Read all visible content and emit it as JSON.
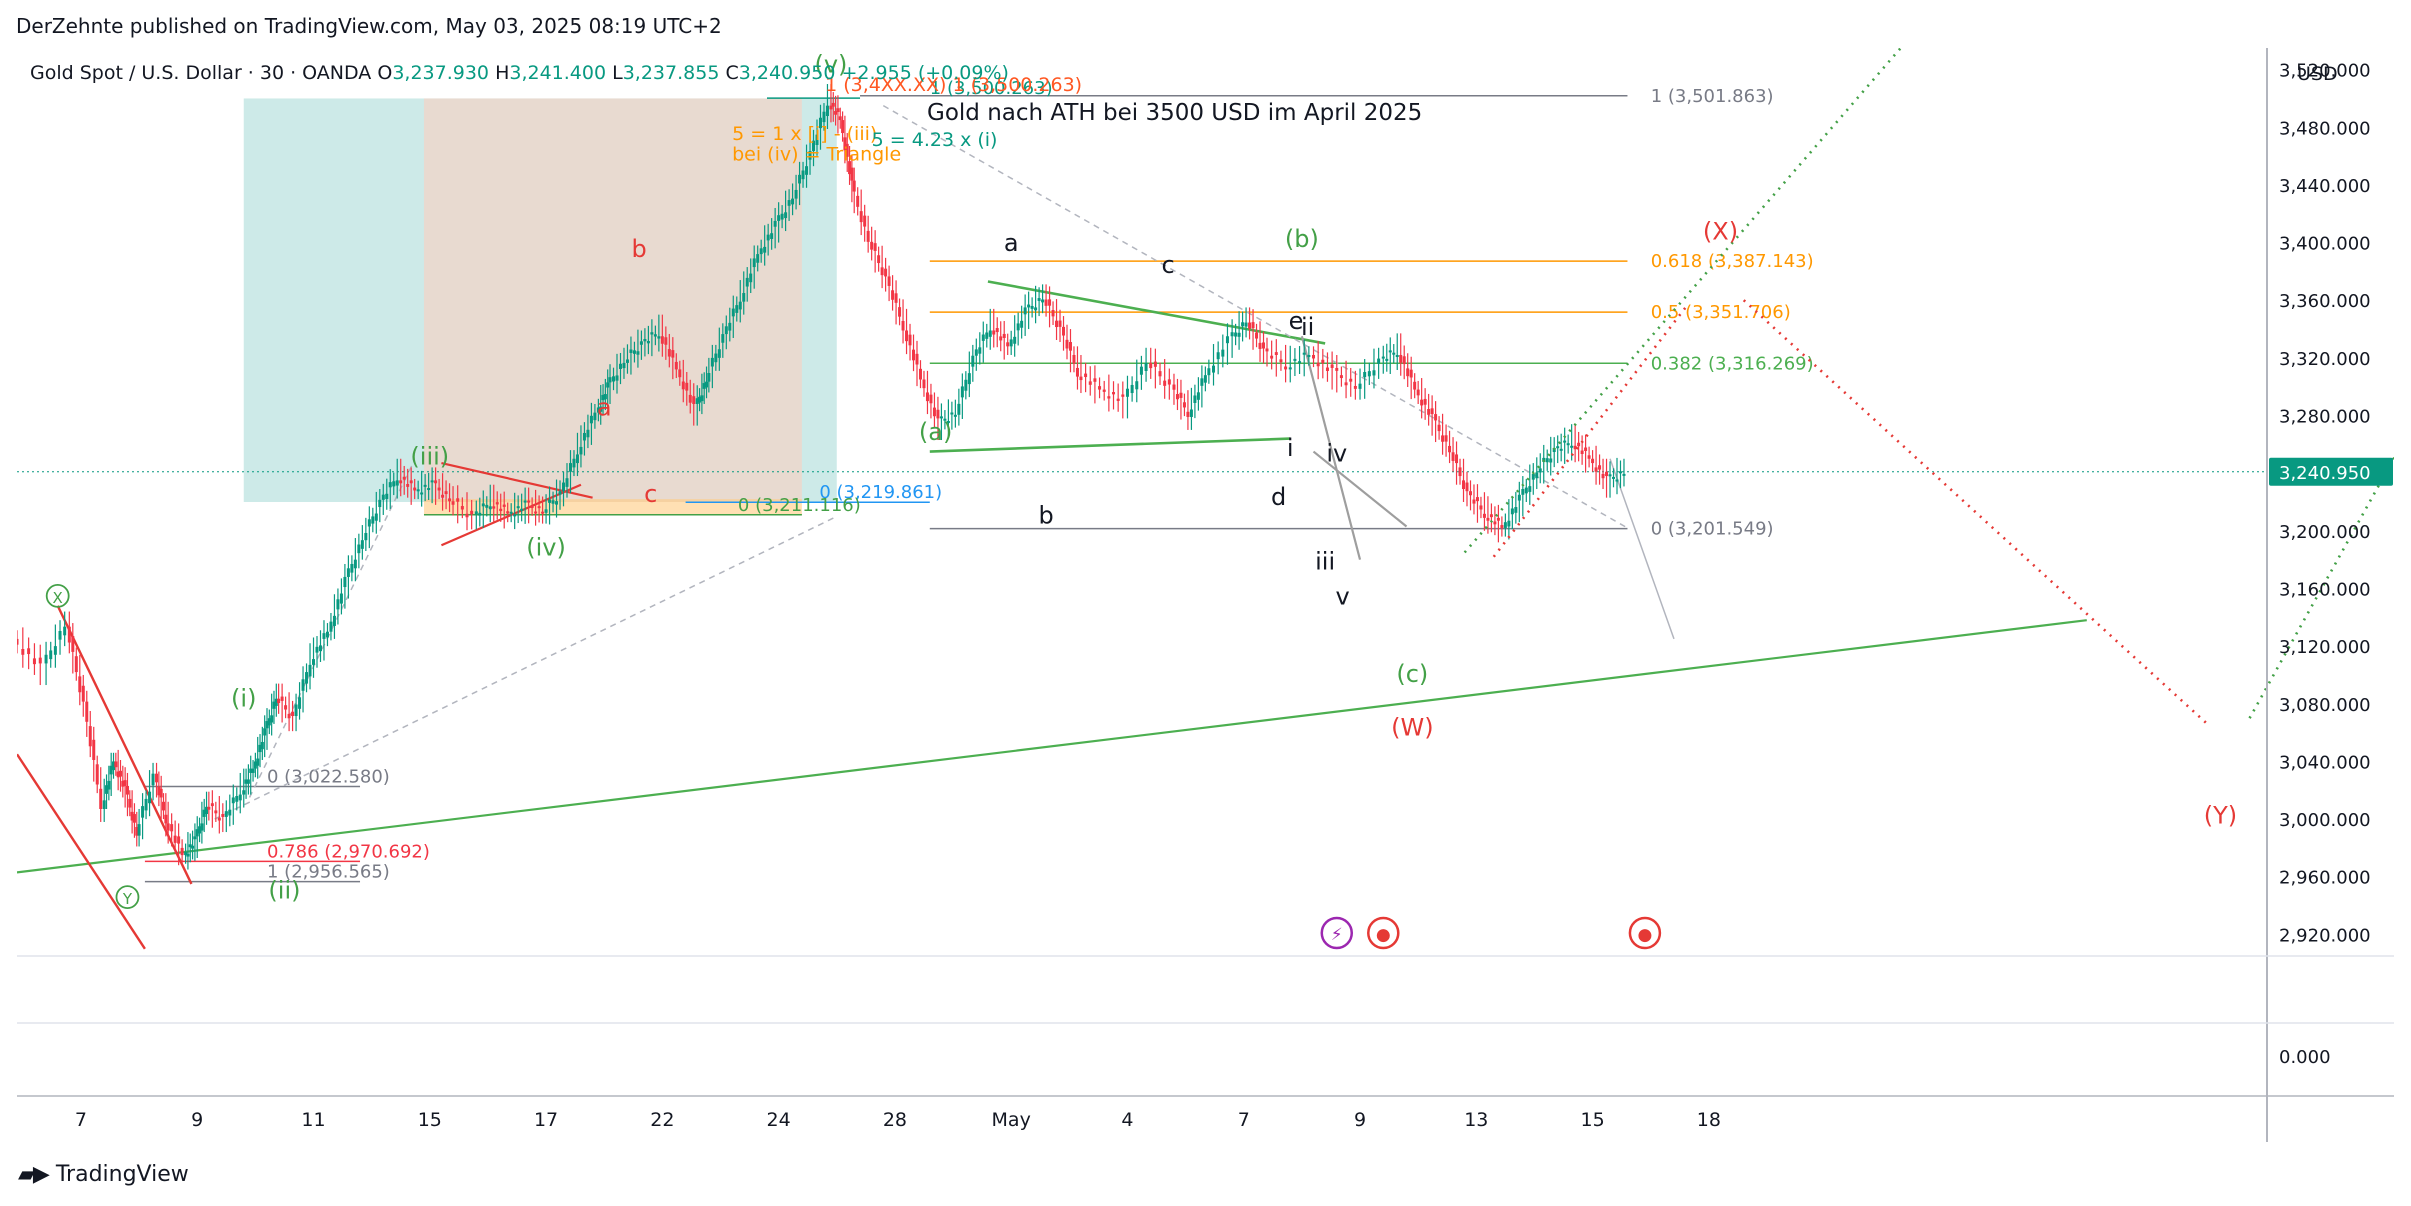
{
  "header": {
    "published": "DerZehnte published on TradingView.com, May 03, 2025 08:19 UTC+2"
  },
  "footer": {
    "brand": "TradingView"
  },
  "symbol": {
    "name": "Gold Spot / U.S. Dollar · 30 · OANDA",
    "o_label": "O",
    "o": "3,237.930",
    "h_label": "H",
    "h": "3,241.400",
    "l_label": "L",
    "l": "3,237.855",
    "c_label": "C",
    "c": "3,240.950",
    "change": "+2.955 (+0.09%)"
  },
  "colors": {
    "up": "#089981",
    "down": "#f23645",
    "fib_orange": "#ff9800",
    "wave_green": "#43a047",
    "wave_red": "#e53935",
    "grid": "#e0e3eb",
    "text": "#131722"
  },
  "chart_data": {
    "type": "line",
    "title": "Gold nach ATH bei 3500 USD im April 2025",
    "currency": "USD",
    "last_price": "3,240.950",
    "y_ticks": [
      "3,520.000",
      "3,480.000",
      "3,440.000",
      "3,400.000",
      "3,360.000",
      "3,320.000",
      "3,280.000",
      "3,240.000",
      "3,200.000",
      "3,160.000",
      "3,120.000",
      "3,080.000",
      "3,040.000",
      "3,000.000",
      "2,960.000",
      "2,920.000"
    ],
    "y_tick_values": [
      3520,
      3480,
      3440,
      3400,
      3360,
      3320,
      3280,
      3240,
      3200,
      3160,
      3120,
      3080,
      3040,
      3000,
      2960,
      2920
    ],
    "ylim": [
      2905,
      3535
    ],
    "x_ticks": [
      "7",
      "9",
      "11",
      "15",
      "17",
      "22",
      "24",
      "28",
      "May",
      "4",
      "7",
      "9",
      "13",
      "15",
      "18"
    ],
    "x_tick_values": [
      0,
      2,
      4,
      6,
      8,
      10,
      12,
      14,
      16,
      18,
      20,
      22,
      24,
      26,
      28
    ],
    "xlim": [
      -1.1,
      37.6
    ],
    "indicator_pane": {
      "tick": "0.000"
    },
    "price_path": [
      [
        -1.1,
        3125
      ],
      [
        -0.6,
        3105
      ],
      [
        -0.2,
        3135
      ],
      [
        0.1,
        3080
      ],
      [
        0.4,
        3010
      ],
      [
        0.6,
        3040
      ],
      [
        0.8,
        3020
      ],
      [
        1.0,
        2990
      ],
      [
        1.3,
        3030
      ],
      [
        1.5,
        3000
      ],
      [
        1.8,
        2975
      ],
      [
        2.0,
        2985
      ],
      [
        2.2,
        3010
      ],
      [
        2.5,
        3000
      ],
      [
        2.8,
        3020
      ],
      [
        3.0,
        3035
      ],
      [
        3.2,
        3060
      ],
      [
        3.4,
        3085
      ],
      [
        3.7,
        3070
      ],
      [
        4.0,
        3110
      ],
      [
        4.3,
        3130
      ],
      [
        4.6,
        3165
      ],
      [
        4.9,
        3195
      ],
      [
        5.2,
        3220
      ],
      [
        5.5,
        3238
      ],
      [
        5.8,
        3228
      ],
      [
        6.1,
        3232
      ],
      [
        6.4,
        3222
      ],
      [
        6.8,
        3210
      ],
      [
        7.1,
        3220
      ],
      [
        7.4,
        3212
      ],
      [
        7.7,
        3218
      ],
      [
        8.0,
        3214
      ],
      [
        8.3,
        3226
      ],
      [
        8.6,
        3256
      ],
      [
        8.9,
        3282
      ],
      [
        9.1,
        3300
      ],
      [
        9.4,
        3318
      ],
      [
        9.7,
        3330
      ],
      [
        10.0,
        3338
      ],
      [
        10.3,
        3312
      ],
      [
        10.6,
        3285
      ],
      [
        10.8,
        3305
      ],
      [
        11.1,
        3335
      ],
      [
        11.4,
        3362
      ],
      [
        11.7,
        3392
      ],
      [
        12.0,
        3412
      ],
      [
        12.3,
        3432
      ],
      [
        12.6,
        3462
      ],
      [
        12.9,
        3498
      ],
      [
        13.1,
        3485
      ],
      [
        13.3,
        3440
      ],
      [
        13.6,
        3402
      ],
      [
        13.9,
        3375
      ],
      [
        14.2,
        3342
      ],
      [
        14.5,
        3305
      ],
      [
        14.8,
        3275
      ],
      [
        15.1,
        3282
      ],
      [
        15.4,
        3320
      ],
      [
        15.7,
        3342
      ],
      [
        16.0,
        3328
      ],
      [
        16.3,
        3352
      ],
      [
        16.6,
        3362
      ],
      [
        16.9,
        3340
      ],
      [
        17.2,
        3310
      ],
      [
        17.6,
        3298
      ],
      [
        18.0,
        3290
      ],
      [
        18.4,
        3318
      ],
      [
        18.8,
        3300
      ],
      [
        19.1,
        3282
      ],
      [
        19.4,
        3308
      ],
      [
        19.8,
        3332
      ],
      [
        20.1,
        3346
      ],
      [
        20.4,
        3325
      ],
      [
        20.8,
        3315
      ],
      [
        21.2,
        3322
      ],
      [
        21.6,
        3310
      ],
      [
        22.0,
        3300
      ],
      [
        22.4,
        3318
      ],
      [
        22.7,
        3325
      ],
      [
        23.0,
        3298
      ],
      [
        23.3,
        3278
      ],
      [
        23.6,
        3256
      ],
      [
        23.9,
        3226
      ],
      [
        24.2,
        3212
      ],
      [
        24.5,
        3202
      ],
      [
        24.8,
        3222
      ],
      [
        25.1,
        3242
      ],
      [
        25.4,
        3256
      ],
      [
        25.7,
        3262
      ],
      [
        26.0,
        3250
      ],
      [
        26.3,
        3235
      ],
      [
        26.6,
        3241
      ]
    ],
    "levels": [
      {
        "label": "1 (3,501.863)",
        "value": 3501.863,
        "color": "#787b86"
      },
      {
        "label": "0.618 (3,387.143)",
        "value": 3387.143,
        "color": "#ff9800"
      },
      {
        "label": "0.5 (3,351.706)",
        "value": 3351.706,
        "color": "#ff9800"
      },
      {
        "label": "0.382 (3,316.269)",
        "value": 3316.269,
        "color": "#4caf50"
      },
      {
        "label": "0 (3,201.549)",
        "value": 3201.549,
        "color": "#787b86"
      },
      {
        "label": "0 (3,022.580)",
        "value": 3022.58,
        "color": "#787b86"
      },
      {
        "label": "0.786 (2,970.692)",
        "value": 2970.692,
        "color": "#f23645"
      },
      {
        "label": "1 (2,956.565)",
        "value": 2956.565,
        "color": "#787b86"
      },
      {
        "label": "0 (3,219.861)",
        "value": 3219.861,
        "color": "#2196f3"
      },
      {
        "label": "0 (3,211.116)",
        "value": 3211.116,
        "color": "#43a047"
      },
      {
        "label": "1 (3,500.263)",
        "value": 3500.263,
        "color": "#089981"
      }
    ],
    "annotations": [
      {
        "text": "(v)",
        "x": 12.9,
        "y": 3518,
        "color": "#43a047"
      },
      {
        "text": "1 (3,4XX.XX) 1 (3,500.263)",
        "x": 12.8,
        "y": 3505,
        "color": "#ff5722"
      },
      {
        "text": "5 = 1 x [i] - (iii)",
        "x": 11.2,
        "y": 3471,
        "color": "#ff9800"
      },
      {
        "text": "bei (iv) = Triangle",
        "x": 11.2,
        "y": 3457,
        "color": "#ff9800"
      },
      {
        "text": "5 = 4.23 x (i)",
        "x": 13.6,
        "y": 3467,
        "color": "#089981"
      },
      {
        "text": "(iii)",
        "x": 6.0,
        "y": 3246,
        "color": "#43a047"
      },
      {
        "text": "(iv)",
        "x": 8.0,
        "y": 3183,
        "color": "#43a047"
      },
      {
        "text": "(i)",
        "x": 2.8,
        "y": 3078,
        "color": "#43a047"
      },
      {
        "text": "(ii)",
        "x": 3.5,
        "y": 2945,
        "color": "#43a047"
      },
      {
        "text": "b",
        "x": 9.6,
        "y": 3390,
        "color": "#e53935"
      },
      {
        "text": "a",
        "x": 9.0,
        "y": 3280,
        "color": "#e53935"
      },
      {
        "text": "c",
        "x": 9.8,
        "y": 3220,
        "color": "#e53935"
      },
      {
        "text": "a",
        "x": 16.0,
        "y": 3394,
        "color": "#131722"
      },
      {
        "text": "c",
        "x": 18.7,
        "y": 3379,
        "color": "#131722"
      },
      {
        "text": "b",
        "x": 16.6,
        "y": 3205,
        "color": "#131722"
      },
      {
        "text": "d",
        "x": 20.6,
        "y": 3218,
        "color": "#131722"
      },
      {
        "text": "e",
        "x": 20.9,
        "y": 3340,
        "color": "#131722"
      },
      {
        "text": "ii",
        "x": 21.1,
        "y": 3336,
        "color": "#131722"
      },
      {
        "text": "i",
        "x": 20.8,
        "y": 3252,
        "color": "#131722"
      },
      {
        "text": "iv",
        "x": 21.6,
        "y": 3248,
        "color": "#131722"
      },
      {
        "text": "iii",
        "x": 21.4,
        "y": 3173,
        "color": "#131722"
      },
      {
        "text": "v",
        "x": 21.7,
        "y": 3149,
        "color": "#131722"
      },
      {
        "text": "(a)",
        "x": 14.7,
        "y": 3263,
        "color": "#43a047"
      },
      {
        "text": "(b)",
        "x": 21.0,
        "y": 3397,
        "color": "#43a047"
      },
      {
        "text": "(c)",
        "x": 22.9,
        "y": 3095,
        "color": "#43a047"
      },
      {
        "text": "(W)",
        "x": 22.9,
        "y": 3058,
        "color": "#e53935"
      },
      {
        "text": "(X)",
        "x": 28.2,
        "y": 3402,
        "color": "#e53935"
      },
      {
        "text": "(Y)",
        "x": 36.8,
        "y": 2997,
        "color": "#e53935"
      },
      {
        "text": "X",
        "x": -0.4,
        "y": 3150,
        "color": "#43a047"
      },
      {
        "text": "Y",
        "x": 0.8,
        "y": 2941,
        "color": "#43a047"
      }
    ]
  }
}
